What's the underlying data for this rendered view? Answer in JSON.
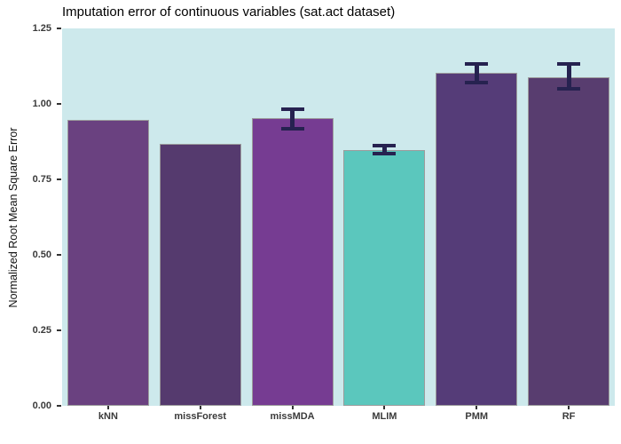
{
  "title": "Imputation error of continuous variables (sat.act dataset)",
  "chart_data": {
    "type": "bar",
    "title": "Imputation error of continuous variables (sat.act dataset)",
    "categories": [
      "kNN",
      "missForest",
      "missMDA",
      "MLIM",
      "PMM",
      "RF"
    ],
    "values": [
      0.947,
      0.868,
      0.952,
      0.846,
      1.102,
      1.088
    ],
    "error_low": [
      null,
      null,
      0.918,
      0.835,
      1.071,
      1.05
    ],
    "error_high": [
      null,
      null,
      0.983,
      0.862,
      1.133,
      1.132
    ],
    "bar_colors": [
      "#6a4180",
      "#553a6e",
      "#763c92",
      "#5bc7bd",
      "#553c78",
      "#583d6f"
    ],
    "xlabel": "",
    "ylabel": "Normalized Root Mean Square Error",
    "ylim": [
      0,
      1.25
    ],
    "ytick_labels": [
      "0.00",
      "0.25",
      "0.50",
      "0.75",
      "1.00",
      "1.25"
    ],
    "ytick_values": [
      0,
      0.25,
      0.5,
      0.75,
      1.0,
      1.25
    ],
    "grid": false,
    "legend": null,
    "panel_bg": "#cde9ec",
    "bar_border": "#9c9c9c",
    "errorbar_color": "#262250"
  }
}
